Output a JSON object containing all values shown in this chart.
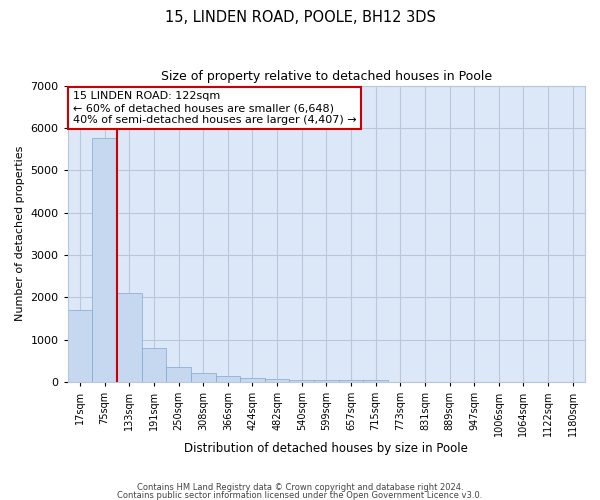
{
  "title": "15, LINDEN ROAD, POOLE, BH12 3DS",
  "subtitle": "Size of property relative to detached houses in Poole",
  "xlabel": "Distribution of detached houses by size in Poole",
  "ylabel": "Number of detached properties",
  "bins": [
    "17sqm",
    "75sqm",
    "133sqm",
    "191sqm",
    "250sqm",
    "308sqm",
    "366sqm",
    "424sqm",
    "482sqm",
    "540sqm",
    "599sqm",
    "657sqm",
    "715sqm",
    "773sqm",
    "831sqm",
    "889sqm",
    "947sqm",
    "1006sqm",
    "1064sqm",
    "1122sqm",
    "1180sqm"
  ],
  "values": [
    1700,
    5750,
    2100,
    800,
    350,
    220,
    150,
    100,
    75,
    50,
    50,
    50,
    50,
    0,
    0,
    0,
    0,
    0,
    0,
    0,
    0
  ],
  "bar_color": "#c5d8f0",
  "bar_edge_color": "#7fa8d0",
  "grid_color": "#b8c8dc",
  "background_color": "#dce8f8",
  "vline_color": "#cc0000",
  "annotation_line1": "15 LINDEN ROAD: 122sqm",
  "annotation_line2": "← 60% of detached houses are smaller (6,648)",
  "annotation_line3": "40% of semi-detached houses are larger (4,407) →",
  "box_facecolor": "#ffffff",
  "box_edgecolor": "#cc0000",
  "ylim": [
    0,
    7000
  ],
  "yticks": [
    0,
    1000,
    2000,
    3000,
    4000,
    5000,
    6000,
    7000
  ],
  "footer1": "Contains HM Land Registry data © Crown copyright and database right 2024.",
  "footer2": "Contains public sector information licensed under the Open Government Licence v3.0."
}
